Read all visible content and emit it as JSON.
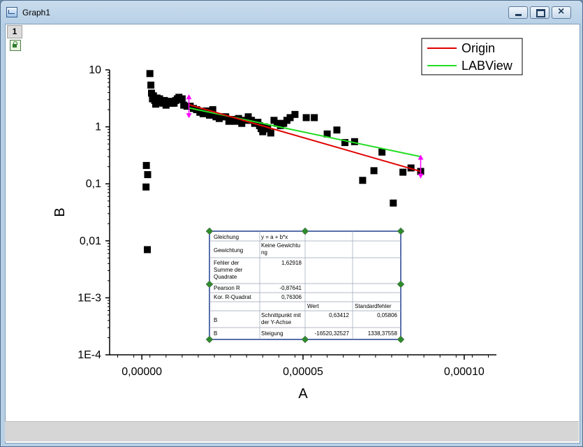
{
  "window": {
    "title": "Graph1"
  },
  "layer": {
    "number": "1"
  },
  "chart_data": {
    "type": "scatter",
    "xlabel": "A",
    "ylabel": "B",
    "xlim": [
      -1e-05,
      0.00011
    ],
    "ylim": [
      0.0001,
      10
    ],
    "y_scale": "log",
    "x_ticks": [
      "0,00000",
      "0,00005",
      "0,00010"
    ],
    "y_ticks": [
      "10",
      "1",
      "0,1",
      "0,01",
      "1E-3",
      "1E-4"
    ],
    "legend_position": "top-right",
    "legend": [
      {
        "name": "Origin",
        "color": "#e00000"
      },
      {
        "name": "LABView",
        "color": "#22dd22"
      }
    ],
    "series": [
      {
        "name": "data",
        "color": "#000000",
        "marker": "square",
        "points": [
          [
            1.3e-06,
            0.088
          ],
          [
            1.4e-06,
            0.21
          ],
          [
            1.8e-06,
            0.145
          ],
          [
            1.7e-06,
            0.007
          ],
          [
            2.5e-06,
            8.6
          ],
          [
            2.8e-06,
            5.4
          ],
          [
            3e-06,
            3.9
          ],
          [
            3.3e-06,
            3.1
          ],
          [
            3.6e-06,
            3.5
          ],
          [
            4e-06,
            2.9
          ],
          [
            4.3e-06,
            2.5
          ],
          [
            4.7e-06,
            3.2
          ],
          [
            5e-06,
            2.8
          ],
          [
            5.5e-06,
            3.1
          ],
          [
            6e-06,
            2.7
          ],
          [
            6.5e-06,
            2.6
          ],
          [
            7e-06,
            2.9
          ],
          [
            7.5e-06,
            2.4
          ],
          [
            8e-06,
            2.7
          ],
          [
            8.5e-06,
            2.8
          ],
          [
            9e-06,
            2.6
          ],
          [
            9.5e-06,
            2.6
          ],
          [
            1e-05,
            2.6
          ],
          [
            1.05e-05,
            2.9
          ],
          [
            1.1e-05,
            3.1
          ],
          [
            1.15e-05,
            3.3
          ],
          [
            1.2e-05,
            3.0
          ],
          [
            1.25e-05,
            3.1
          ],
          [
            1.3e-05,
            2.4
          ],
          [
            1.4e-05,
            2.3
          ],
          [
            1.5e-05,
            2.3
          ],
          [
            1.6e-05,
            2.1
          ],
          [
            1.7e-05,
            2.0
          ],
          [
            1.8e-05,
            1.8
          ],
          [
            1.9e-05,
            1.7
          ],
          [
            2e-05,
            1.9
          ],
          [
            2.1e-05,
            1.6
          ],
          [
            2.2e-05,
            2.0
          ],
          [
            2.3e-05,
            1.5
          ],
          [
            2.4e-05,
            1.4
          ],
          [
            2.5e-05,
            1.5
          ],
          [
            2.6e-05,
            1.5
          ],
          [
            2.7e-05,
            1.25
          ],
          [
            2.8e-05,
            1.35
          ],
          [
            2.9e-05,
            1.25
          ],
          [
            3e-05,
            1.4
          ],
          [
            3.1e-05,
            1.15
          ],
          [
            3.2e-05,
            1.3
          ],
          [
            3.3e-05,
            1.5
          ],
          [
            3.4e-05,
            1.3
          ],
          [
            3.5e-05,
            1.15
          ],
          [
            3.6e-05,
            1.2
          ],
          [
            3.65e-05,
            1.05
          ],
          [
            3.7e-05,
            0.93
          ],
          [
            3.75e-05,
            0.82
          ],
          [
            3.8e-05,
            1.0
          ],
          [
            3.9e-05,
            0.92
          ],
          [
            4e-05,
            0.78
          ],
          [
            4.1e-05,
            1.3
          ],
          [
            4.2e-05,
            1.15
          ],
          [
            4.3e-05,
            1.05
          ],
          [
            4.4e-05,
            1.15
          ],
          [
            4.5e-05,
            1.3
          ],
          [
            4.6e-05,
            1.45
          ],
          [
            4.75e-05,
            1.65
          ],
          [
            5.1e-05,
            1.45
          ],
          [
            5.35e-05,
            1.45
          ],
          [
            5.75e-05,
            0.75
          ],
          [
            6.05e-05,
            0.88
          ],
          [
            6.3e-05,
            0.53
          ],
          [
            6.6e-05,
            0.55
          ],
          [
            6.85e-05,
            0.115
          ],
          [
            7.2e-05,
            0.17
          ],
          [
            7.45e-05,
            0.36
          ],
          [
            7.8e-05,
            0.046
          ],
          [
            8.1e-05,
            0.16
          ],
          [
            8.35e-05,
            0.19
          ],
          [
            8.65e-05,
            0.165
          ]
        ]
      },
      {
        "name": "Origin",
        "color": "#e00000",
        "x": [
          1.46e-05,
          8.65e-05
        ],
        "y": [
          2.45,
          0.165
        ]
      },
      {
        "name": "LABView",
        "color": "#22dd22",
        "x": [
          1.46e-05,
          8.65e-05
        ],
        "y": [
          2.15,
          0.3
        ]
      }
    ]
  },
  "fit_table": {
    "rows": [
      [
        "Gleichung",
        "",
        "y = a + b*x",
        "",
        ""
      ],
      [
        "Gewichtung",
        "",
        "Keine Gewichtu",
        "ng",
        ""
      ],
      [
        "Fehler der",
        "Summe der",
        "Quadrate",
        "1,62918",
        ""
      ],
      [
        "Pearson R",
        "",
        "",
        "-0,87641",
        ""
      ],
      [
        "Kor. R-Quadrat",
        "",
        "",
        "0,76306",
        ""
      ],
      [
        "",
        "",
        "",
        "Wert",
        "Standardfehler"
      ],
      [
        "B",
        "Schnittpunkt mit",
        "der Y-Achse",
        "0,63412",
        "0,05806"
      ],
      [
        "B",
        "",
        "Steigung",
        "-16520,32527",
        "1338,37558"
      ]
    ]
  }
}
